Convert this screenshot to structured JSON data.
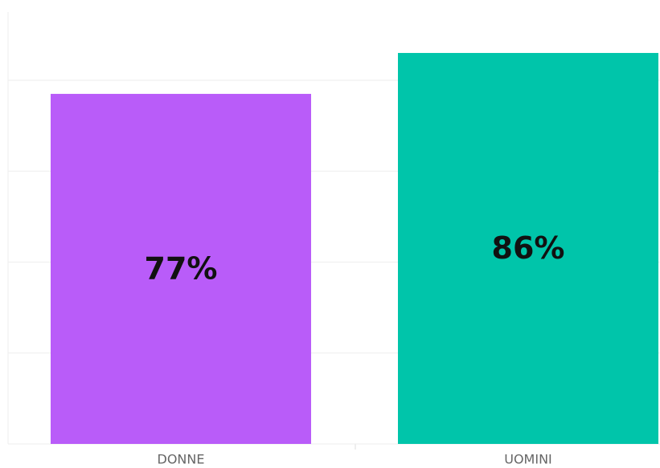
{
  "chart_data": {
    "type": "bar",
    "categories": [
      "DONNE",
      "UOMINI"
    ],
    "values": [
      77,
      86
    ],
    "value_labels": [
      "77%",
      "86%"
    ],
    "colors": [
      "#b95cf9",
      "#00c5aa"
    ],
    "ylim": [
      0,
      95
    ],
    "yticks": [
      0,
      20,
      40,
      60,
      80
    ],
    "grid": true
  }
}
